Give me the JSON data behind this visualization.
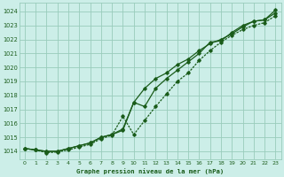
{
  "title": "Graphe pression niveau de la mer (hPa)",
  "bg_color": "#cceee8",
  "grid_color": "#99ccbb",
  "line_color": "#1a5c1a",
  "xlim": [
    -0.5,
    23.5
  ],
  "ylim": [
    1013.4,
    1024.6
  ],
  "yticks": [
    1014,
    1015,
    1016,
    1017,
    1018,
    1019,
    1020,
    1021,
    1022,
    1023,
    1024
  ],
  "xticks": [
    0,
    1,
    2,
    3,
    4,
    5,
    6,
    7,
    8,
    9,
    10,
    11,
    12,
    13,
    14,
    15,
    16,
    17,
    18,
    19,
    20,
    21,
    22,
    23
  ],
  "series1_x": [
    0,
    1,
    2,
    3,
    4,
    5,
    6,
    7,
    8,
    9,
    10,
    11,
    12,
    13,
    14,
    15,
    16,
    17,
    18,
    19,
    20,
    21,
    22,
    23
  ],
  "series1_y": [
    1014.2,
    1014.1,
    1014.0,
    1014.0,
    1014.2,
    1014.4,
    1014.6,
    1015.0,
    1015.2,
    1015.5,
    1017.5,
    1018.5,
    1019.2,
    1019.6,
    1020.2,
    1020.6,
    1021.2,
    1021.7,
    1022.0,
    1022.4,
    1022.9,
    1023.3,
    1023.4,
    1023.9
  ],
  "series2_x": [
    0,
    1,
    2,
    3,
    4,
    5,
    6,
    7,
    8,
    9,
    10,
    11,
    12,
    13,
    14,
    15,
    16,
    17,
    18,
    19,
    20,
    21,
    22,
    23
  ],
  "series2_y": [
    1014.2,
    1014.1,
    1014.0,
    1014.0,
    1014.2,
    1014.4,
    1014.6,
    1015.0,
    1015.2,
    1015.6,
    1017.5,
    1017.2,
    1018.5,
    1019.2,
    1019.8,
    1020.4,
    1021.0,
    1021.8,
    1021.9,
    1022.5,
    1023.0,
    1023.3,
    1023.4,
    1024.1
  ],
  "series3_x": [
    0,
    1,
    2,
    3,
    4,
    5,
    6,
    7,
    8,
    9,
    10,
    11,
    12,
    13,
    14,
    15,
    16,
    17,
    18,
    19,
    20,
    21,
    22,
    23
  ],
  "series3_y": [
    1014.2,
    1014.1,
    1013.9,
    1013.95,
    1014.1,
    1014.3,
    1014.5,
    1014.9,
    1015.15,
    1016.5,
    1015.2,
    1016.2,
    1017.2,
    1018.1,
    1019.0,
    1019.6,
    1020.5,
    1021.2,
    1021.8,
    1022.3,
    1022.7,
    1023.0,
    1023.2,
    1023.7
  ]
}
